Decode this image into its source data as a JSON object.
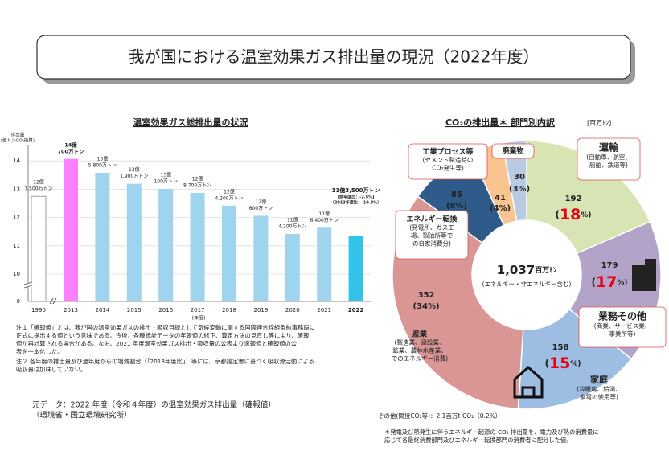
{
  "title": "我が国における温室効果ガス排出量の現況（2022年度）",
  "chart_data": [
    {
      "type": "bar",
      "title": "温室効果ガス総排出量の状況",
      "y_label": [
        "排出量",
        "(億トンCO₂換算)"
      ],
      "x_label": "(年度)",
      "categories": [
        "1990",
        "2013",
        "2014",
        "2015",
        "2016",
        "2017",
        "2018",
        "2019",
        "2020",
        "2021",
        "2022"
      ],
      "values": [
        12.75,
        14.07,
        13.58,
        13.19,
        13.01,
        12.87,
        12.42,
        12.06,
        11.42,
        11.64,
        11.35
      ],
      "value_labels": [
        [
          "12億",
          "7,500万トン"
        ],
        [
          "14億",
          "700万トン"
        ],
        [
          "13億",
          "5,800万トン"
        ],
        [
          "13億",
          "1,900万トン"
        ],
        [
          "13億",
          "100万トン"
        ],
        [
          "12億",
          "8,700万トン"
        ],
        [
          "12億",
          "4,200万トン"
        ],
        [
          "12億",
          "600万トン"
        ],
        [
          "11億",
          "4,200万トン"
        ],
        [
          "11億",
          "6,400万トン"
        ],
        [
          "11億3,500万トン"
        ]
      ],
      "colors": [
        "#ffffff",
        "#ff80ff",
        "#9fd4ee",
        "#9fd4ee",
        "#9fd4ee",
        "#9fd4ee",
        "#9fd4ee",
        "#9fd4ee",
        "#9fd4ee",
        "#9fd4ee",
        "#33c3e8"
      ],
      "annotations": [
        "[前年度比：-2.5%]",
        "（2013年度比：-19.3%）"
      ],
      "ylim": [
        0,
        14.5
      ],
      "yticks": [
        0,
        10,
        11,
        12,
        13,
        14
      ],
      "ybreak": [
        0,
        10
      ],
      "grid": true
    },
    {
      "type": "pie",
      "title": "CO₂の排出量＊ 部門別内訳",
      "unit": "[百万ﾄﾝ]",
      "categories": [
        "運輸",
        "業務その他",
        "家庭",
        "産業",
        "エネルギー転換",
        "工業プロセス等",
        "廃棄物"
      ],
      "values": [
        192,
        179,
        158,
        352,
        85,
        41,
        30
      ],
      "share_labels": [
        "(18%)",
        "(17%)",
        "(15%)",
        "(34%)",
        "(8%)",
        "(4%)",
        "(3%)"
      ],
      "highlight": [
        true,
        true,
        true,
        false,
        false,
        false,
        false
      ],
      "descriptions": [
        [
          "(自動車、航空、",
          "船舶、鉄道等)"
        ],
        [
          "(商業、サービス業、",
          "事業所等)"
        ],
        [
          "(冷暖房、給湯、",
          "家電の使用等)"
        ],
        [
          "(製造業、建設業、",
          "鉱業、農林水産業、",
          "でのエネルギー消費)"
        ],
        [
          "(発電所、ガス工",
          "場、製油所等で",
          "の自家消費分)"
        ],
        [
          "(セメント製造時の",
          "CO₂発生等)"
        ],
        []
      ],
      "colors": [
        "#d7e4b4",
        "#b4a3c8",
        "#9dbde3",
        "#d99694",
        "#2f5b8a",
        "#f9c48f",
        "#b9cbe0"
      ],
      "center_text": [
        "1,037百万ﾄﾝ",
        "(エネルギー・非エネルギー含む)"
      ],
      "other_note": "その他(間接CO₂等)：2.1百万t-CO₂（0.2%）",
      "footnote": [
        "＊発電及び熱発生に伴うエネルギー起源の CO₂ 排出量を、電力及び熱の消費量に",
        "応じて各最終消費部門及びエネルギー転換部門の消費者に配分した値。"
      ]
    }
  ],
  "notes": [
    [
      "注１「確報値」とは、我が国の温室効果ガスの排出・吸収目録として気候変動に関する国際連合枠組条約事務局に",
      "正式に提出する値という意味である。今後、各種統計データの年報値の修正、算定方法の見直し等により、確報",
      "値が再計算される場合がある。なお、2021 年度温室効果ガス排出・吸収量の公表より速報値と確報値の公",
      "表を一本化した。"
    ],
    [
      "注２ 各年度の排出量及び過年度からの増減割合（「2013年度比」）等には、京都議定書に基づく吸収源活動による",
      "吸収量は加味していない。"
    ]
  ],
  "source": [
    "元データ：2022 年度（令和４年度）の温室効果ガス排出量（確報値）",
    "（環境省・国立環境研究所）"
  ]
}
